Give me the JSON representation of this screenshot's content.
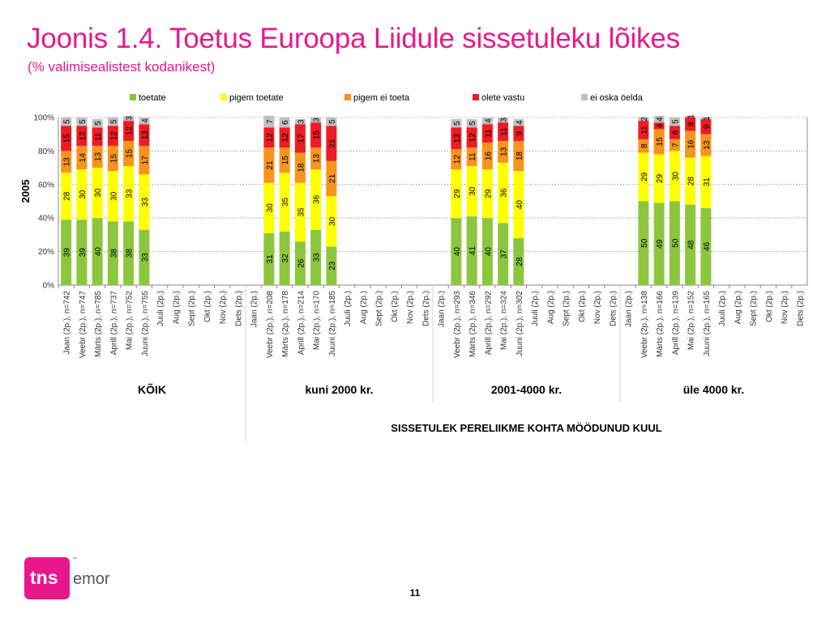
{
  "header": {
    "title": "Joonis 1.4. Toetus Euroopa Liidule sissetuleku lõikes",
    "subtitle": "(% valimisealistest kodanikest)"
  },
  "colors": {
    "accent": "#e8188c",
    "toetate": "#8cc63f",
    "pigem_toetate": "#ffff00",
    "pigem_ei_toeta": "#f7941d",
    "olete_vastu": "#ed1c24",
    "ei_oska_oelda": "#c0c0c0"
  },
  "chart_data": {
    "type": "bar",
    "stacked": true,
    "year_label": "2005",
    "ylim": [
      0,
      100
    ],
    "yticks": [
      "0%",
      "20%",
      "40%",
      "60%",
      "80%",
      "100%"
    ],
    "grid": "dotted horizontal",
    "legend_position": "top",
    "legend": [
      {
        "name": "toetate",
        "color": "#8cc63f"
      },
      {
        "name": "pigem toetate",
        "color": "#ffff00"
      },
      {
        "name": "pigem ei toeta",
        "color": "#f7941d"
      },
      {
        "name": "olete vastu",
        "color": "#ed1c24"
      },
      {
        "name": "ei oska öelda",
        "color": "#c0c0c0"
      }
    ],
    "axis_title": "SISSETULEK PERELIIKME KOHTA MÖÖDUNUD KUUL",
    "groups": [
      {
        "name": "KÕIK",
        "categories": [
          "Jaan (2p.), n=742",
          "Veebr (2p.), n=747",
          "Märts (2p.), n=785",
          "Aprill (2p.), n=737",
          "Mai (2p.), n=752",
          "Juuni (2p.), n=755",
          "Juuli (2p.)",
          "Aug (2p.)",
          "Sept (2p.)",
          "Okt (2p.)",
          "Nov (2p.)",
          "Dets (2p.)"
        ],
        "values": [
          [
            39,
            28,
            13,
            15,
            5
          ],
          [
            39,
            30,
            14,
            12,
            5
          ],
          [
            40,
            30,
            13,
            11,
            5
          ],
          [
            38,
            30,
            15,
            12,
            5
          ],
          [
            38,
            33,
            15,
            12,
            3
          ],
          [
            33,
            33,
            17,
            13,
            4
          ],
          null,
          null,
          null,
          null,
          null,
          null
        ]
      },
      {
        "name": "kuni 2000 kr.",
        "categories": [
          "Jaan (2p.)",
          "Veebr (2p.), n=208",
          "Märts (2p.), n=178",
          "Aprill (2p.), n=214",
          "Mai (2p.), n=170",
          "Juuni (2p.), n=185",
          "Juuli (2p.)",
          "Aug (2p.)",
          "Sept (2p.)",
          "Okt (2p.)",
          "Nov (2p.)",
          "Dets (2p.)"
        ],
        "values": [
          null,
          [
            31,
            30,
            21,
            12,
            7
          ],
          [
            32,
            35,
            15,
            12,
            6
          ],
          [
            26,
            35,
            18,
            17,
            3
          ],
          [
            33,
            36,
            13,
            15,
            3
          ],
          [
            23,
            30,
            21,
            21,
            5
          ],
          null,
          null,
          null,
          null,
          null,
          null
        ]
      },
      {
        "name": "2001-4000 kr.",
        "categories": [
          "Jaan (2p.)",
          "Veebr (2p.), n=293",
          "Märts (2p.), n=346",
          "Aprill (2p.), n=292",
          "Mai (2p.), n=324",
          "Juuni (2p.), n=302",
          "Juuli (2p.)",
          "Aug (2p.)",
          "Sept (2p.)",
          "Okt (2p.)",
          "Nov (2p.)",
          "Dets (2p.)"
        ],
        "values": [
          null,
          [
            40,
            29,
            12,
            13,
            5
          ],
          [
            41,
            30,
            11,
            12,
            5
          ],
          [
            40,
            29,
            16,
            11,
            4
          ],
          [
            37,
            36,
            13,
            11,
            3
          ],
          [
            28,
            40,
            18,
            9,
            4
          ],
          null,
          null,
          null,
          null,
          null,
          null
        ]
      },
      {
        "name": "üle 4000 kr.",
        "categories": [
          "Jaan (2p.)",
          "Veebr (2p.), n=138",
          "Märts (2p.), n=166",
          "Aprill (2p.), n=139",
          "Mai (2p.), n=152",
          "Juuni (2p.), n=165",
          "Juuli (2p.)",
          "Aug (2p.)",
          "Sept (2p.)",
          "Okt (2p.)",
          "Nov (2p.)",
          "Dets (2p.)"
        ],
        "values": [
          null,
          [
            50,
            29,
            8,
            11,
            2
          ],
          [
            49,
            29,
            15,
            4,
            4
          ],
          [
            50,
            30,
            7,
            8,
            5
          ],
          [
            48,
            28,
            16,
            8,
            1
          ],
          [
            46,
            31,
            13,
            9,
            1
          ],
          null,
          null,
          null,
          null,
          null,
          null
        ]
      }
    ]
  },
  "logo": {
    "brand": "tns",
    "sub": "emor"
  },
  "footer": {
    "page_number": "11"
  }
}
